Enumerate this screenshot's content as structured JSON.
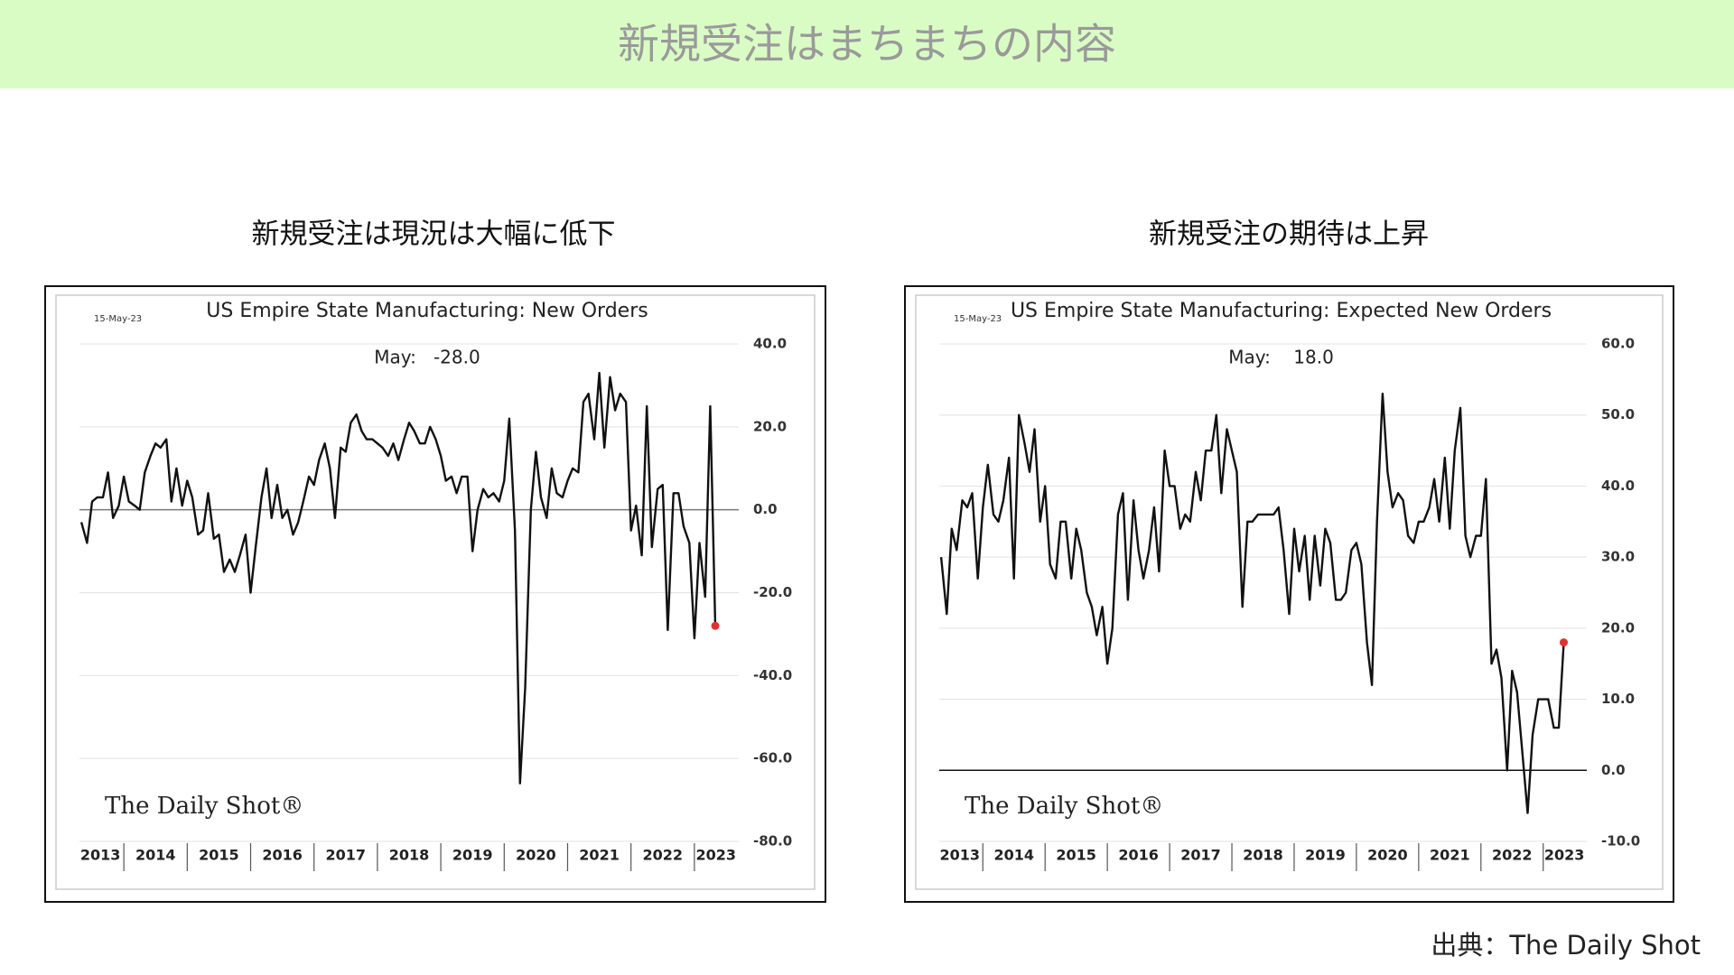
{
  "header": {
    "title": "新規受注はまちまちの内容"
  },
  "footer": {
    "source": "出典：The Daily Shot"
  },
  "chart_data": [
    {
      "type": "line",
      "heading": "新規受注は現況は大幅に低下",
      "title": "US Empire State Manufacturing: New Orders",
      "date_label": "15-May-23",
      "annotation": "May:   -28.0",
      "watermark": "The Daily Shot®",
      "color": "#111111",
      "last_point_color": "#e0322e",
      "xlim": [
        2013.3,
        2023.7
      ],
      "xticks": [
        {
          "value": 2013.63,
          "label": "2013"
        },
        {
          "value": 2014.5,
          "label": "2014"
        },
        {
          "value": 2015.5,
          "label": "2015"
        },
        {
          "value": 2016.5,
          "label": "2016"
        },
        {
          "value": 2017.5,
          "label": "2017"
        },
        {
          "value": 2018.5,
          "label": "2018"
        },
        {
          "value": 2019.5,
          "label": "2019"
        },
        {
          "value": 2020.5,
          "label": "2020"
        },
        {
          "value": 2021.5,
          "label": "2021"
        },
        {
          "value": 2022.5,
          "label": "2022"
        },
        {
          "value": 2023.34,
          "label": "2023"
        }
      ],
      "ylim": [
        -80,
        40
      ],
      "yticks": [
        {
          "value": -80,
          "label": "-80.0"
        },
        {
          "value": -60,
          "label": "-60.0"
        },
        {
          "value": -40,
          "label": "-40.0"
        },
        {
          "value": -20,
          "label": "-20.0"
        },
        {
          "value": 0,
          "label": "0.0"
        },
        {
          "value": 20,
          "label": "20.0"
        },
        {
          "value": 40,
          "label": "40.0"
        }
      ],
      "grid": true,
      "x": [
        2013.33,
        2013.42,
        2013.5,
        2013.58,
        2013.67,
        2013.75,
        2013.83,
        2013.92,
        2014,
        2014.08,
        2014.17,
        2014.25,
        2014.33,
        2014.42,
        2014.5,
        2014.58,
        2014.67,
        2014.75,
        2014.83,
        2014.92,
        2015,
        2015.08,
        2015.17,
        2015.25,
        2015.33,
        2015.42,
        2015.5,
        2015.58,
        2015.67,
        2015.75,
        2015.83,
        2015.92,
        2016,
        2016.08,
        2016.17,
        2016.25,
        2016.33,
        2016.42,
        2016.5,
        2016.58,
        2016.67,
        2016.75,
        2016.83,
        2016.92,
        2017,
        2017.08,
        2017.17,
        2017.25,
        2017.33,
        2017.42,
        2017.5,
        2017.58,
        2017.67,
        2017.75,
        2017.83,
        2017.92,
        2018,
        2018.08,
        2018.17,
        2018.25,
        2018.33,
        2018.42,
        2018.5,
        2018.58,
        2018.67,
        2018.75,
        2018.83,
        2018.92,
        2019,
        2019.08,
        2019.17,
        2019.25,
        2019.33,
        2019.42,
        2019.5,
        2019.58,
        2019.67,
        2019.75,
        2019.83,
        2019.92,
        2020,
        2020.08,
        2020.17,
        2020.25,
        2020.33,
        2020.42,
        2020.5,
        2020.58,
        2020.67,
        2020.75,
        2020.83,
        2020.92,
        2021,
        2021.08,
        2021.17,
        2021.25,
        2021.33,
        2021.42,
        2021.5,
        2021.58,
        2021.67,
        2021.75,
        2021.83,
        2021.92,
        2022,
        2022.08,
        2022.17,
        2022.25,
        2022.33,
        2022.42,
        2022.5,
        2022.58,
        2022.67,
        2022.75,
        2022.83,
        2022.92,
        2023,
        2023.08,
        2023.17,
        2023.25,
        2023.33
      ],
      "values": [
        -3,
        -8,
        2,
        3,
        3,
        9,
        -2,
        1,
        8,
        2,
        1,
        0,
        9,
        13,
        16,
        15,
        17,
        2,
        10,
        1,
        7,
        3,
        -6,
        -5,
        4,
        -7,
        -6,
        -15,
        -12,
        -15,
        -11,
        -6,
        -20,
        -9,
        3,
        10,
        -2,
        6,
        -2,
        0,
        -6,
        -3,
        2,
        8,
        6,
        12,
        16,
        10,
        -2,
        15,
        14,
        21,
        23,
        19,
        17,
        17,
        16,
        15,
        13,
        16,
        12,
        17,
        21,
        19,
        16,
        16,
        20,
        17,
        13,
        7,
        8,
        4,
        8,
        8,
        -10,
        0,
        5,
        3,
        4,
        2,
        7,
        22,
        -5,
        -66,
        -43,
        0,
        14,
        3,
        -2,
        10,
        4,
        3,
        7,
        10,
        9,
        26,
        28,
        17,
        33,
        15,
        32,
        24,
        28,
        26,
        -5,
        1,
        -11,
        25,
        -9,
        5,
        6,
        -29,
        4,
        4,
        -4,
        -8,
        -31,
        -8,
        -21,
        25,
        -28
      ]
    },
    {
      "type": "line",
      "heading": "新規受注の期待は上昇",
      "title": "US Empire State Manufacturing: Expected New Orders",
      "date_label": "15-May-23",
      "annotation": "May:    18.0",
      "watermark": "The Daily Shot®",
      "color": "#111111",
      "last_point_color": "#e0322e",
      "xlim": [
        2013.3,
        2023.7
      ],
      "xticks": [
        {
          "value": 2013.63,
          "label": "2013"
        },
        {
          "value": 2014.5,
          "label": "2014"
        },
        {
          "value": 2015.5,
          "label": "2015"
        },
        {
          "value": 2016.5,
          "label": "2016"
        },
        {
          "value": 2017.5,
          "label": "2017"
        },
        {
          "value": 2018.5,
          "label": "2018"
        },
        {
          "value": 2019.5,
          "label": "2019"
        },
        {
          "value": 2020.5,
          "label": "2020"
        },
        {
          "value": 2021.5,
          "label": "2021"
        },
        {
          "value": 2022.5,
          "label": "2022"
        },
        {
          "value": 2023.34,
          "label": "2023"
        }
      ],
      "ylim": [
        -10,
        60
      ],
      "yticks": [
        {
          "value": -10,
          "label": "-10.0"
        },
        {
          "value": 0,
          "label": "0.0"
        },
        {
          "value": 10,
          "label": "10.0"
        },
        {
          "value": 20,
          "label": "20.0"
        },
        {
          "value": 30,
          "label": "30.0"
        },
        {
          "value": 40,
          "label": "40.0"
        },
        {
          "value": 50,
          "label": "50.0"
        },
        {
          "value": 60,
          "label": "60.0"
        }
      ],
      "grid": true,
      "x": [
        2013.33,
        2013.42,
        2013.5,
        2013.58,
        2013.67,
        2013.75,
        2013.83,
        2013.92,
        2014,
        2014.08,
        2014.17,
        2014.25,
        2014.33,
        2014.42,
        2014.5,
        2014.58,
        2014.67,
        2014.75,
        2014.83,
        2014.92,
        2015,
        2015.08,
        2015.17,
        2015.25,
        2015.33,
        2015.42,
        2015.5,
        2015.58,
        2015.67,
        2015.75,
        2015.83,
        2015.92,
        2016,
        2016.08,
        2016.17,
        2016.25,
        2016.33,
        2016.42,
        2016.5,
        2016.58,
        2016.67,
        2016.75,
        2016.83,
        2016.92,
        2017,
        2017.08,
        2017.17,
        2017.25,
        2017.33,
        2017.42,
        2017.5,
        2017.58,
        2017.67,
        2017.75,
        2017.83,
        2017.92,
        2018,
        2018.08,
        2018.17,
        2018.25,
        2018.33,
        2018.42,
        2018.5,
        2018.58,
        2018.67,
        2018.75,
        2018.83,
        2018.92,
        2019,
        2019.08,
        2019.17,
        2019.25,
        2019.33,
        2019.42,
        2019.5,
        2019.58,
        2019.67,
        2019.75,
        2019.83,
        2019.92,
        2020,
        2020.08,
        2020.17,
        2020.25,
        2020.33,
        2020.42,
        2020.5,
        2020.58,
        2020.67,
        2020.75,
        2020.83,
        2020.92,
        2021,
        2021.08,
        2021.17,
        2021.25,
        2021.33,
        2021.42,
        2021.5,
        2021.58,
        2021.67,
        2021.75,
        2021.83,
        2021.92,
        2022,
        2022.08,
        2022.17,
        2022.25,
        2022.33,
        2022.42,
        2022.5,
        2022.58,
        2022.67,
        2022.75,
        2022.83,
        2022.92,
        2023,
        2023.08,
        2023.17,
        2023.25,
        2023.33
      ],
      "values": [
        30,
        22,
        34,
        31,
        38,
        37,
        39,
        27,
        37,
        43,
        36,
        35,
        38,
        44,
        27,
        50,
        46,
        42,
        48,
        35,
        40,
        29,
        27,
        35,
        35,
        27,
        34,
        31,
        25,
        23,
        19,
        23,
        15,
        20,
        36,
        39,
        24,
        38,
        31,
        27,
        31,
        37,
        28,
        45,
        40,
        40,
        34,
        36,
        35,
        42,
        38,
        45,
        45,
        50,
        39,
        48,
        45,
        42,
        23,
        35,
        35,
        36,
        36,
        36,
        36,
        37,
        31,
        22,
        34,
        28,
        33,
        24,
        33,
        26,
        34,
        32,
        24,
        24,
        25,
        31,
        32,
        29,
        18,
        12,
        35,
        53,
        42,
        37,
        39,
        38,
        33,
        32,
        35,
        35,
        37,
        41,
        35,
        44,
        34,
        45,
        51,
        33,
        30,
        33,
        33,
        41,
        15,
        17,
        13,
        0,
        14,
        11,
        2,
        -6,
        5,
        10,
        10,
        10,
        6,
        6,
        18
      ]
    }
  ]
}
